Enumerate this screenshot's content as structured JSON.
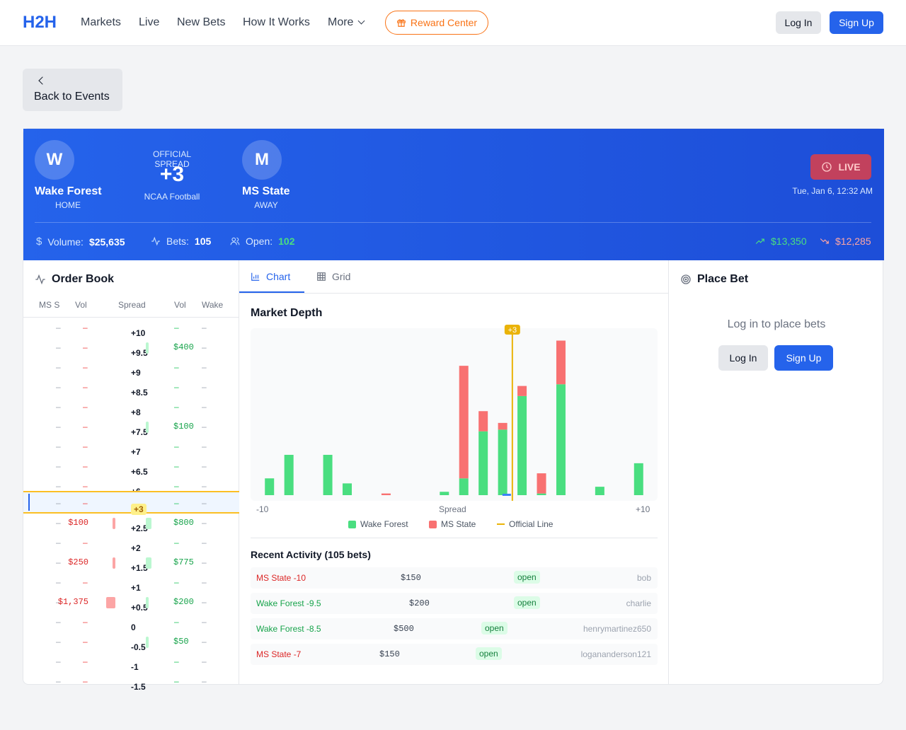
{
  "nav": {
    "logo": "H2H",
    "links": [
      "Markets",
      "Live",
      "New Bets",
      "How It Works",
      "More"
    ],
    "reward": "Reward Center",
    "login": "Log In",
    "signup": "Sign Up"
  },
  "back": "Back to Events",
  "event": {
    "home": {
      "initial": "W",
      "name": "Wake Forest",
      "role": "HOME"
    },
    "away": {
      "initial": "M",
      "name": "MS State",
      "role": "AWAY"
    },
    "spread_label": "OFFICIAL SPREAD",
    "spread": "+3",
    "league": "NCAA Football",
    "status": "LIVE",
    "date": "Tue, Jan 6, 12:32 AM",
    "volume_label": "Volume:",
    "volume": "$25,635",
    "bets_label": "Bets:",
    "bets": "105",
    "open_label": "Open:",
    "open": "102",
    "up": "$13,350",
    "down": "$12,285"
  },
  "orderbook": {
    "title": "Order Book",
    "headers": [
      "MS S",
      "Vol",
      "Spread",
      "Vol",
      "Wake"
    ],
    "rows": [
      {
        "spread": "+10",
        "ms": "",
        "wk": ""
      },
      {
        "spread": "+9.5",
        "ms": "",
        "wk": "$400"
      },
      {
        "spread": "+9",
        "ms": "",
        "wk": ""
      },
      {
        "spread": "+8.5",
        "ms": "",
        "wk": ""
      },
      {
        "spread": "+8",
        "ms": "",
        "wk": ""
      },
      {
        "spread": "+7.5",
        "ms": "",
        "wk": "$100"
      },
      {
        "spread": "+7",
        "ms": "",
        "wk": ""
      },
      {
        "spread": "+6.5",
        "ms": "",
        "wk": ""
      },
      {
        "spread": "+6",
        "ms": "",
        "wk": ""
      },
      {
        "spread": "+3",
        "ms": "",
        "wk": "",
        "current": true
      },
      {
        "spread": "+2.5",
        "ms": "$100",
        "wk": "$800"
      },
      {
        "spread": "+2",
        "ms": "",
        "wk": ""
      },
      {
        "spread": "+1.5",
        "ms": "$250",
        "wk": "$775"
      },
      {
        "spread": "+1",
        "ms": "",
        "wk": ""
      },
      {
        "spread": "+0.5",
        "ms": "$1,375",
        "wk": "$200"
      },
      {
        "spread": "0",
        "ms": "",
        "wk": ""
      },
      {
        "spread": "-0.5",
        "ms": "",
        "wk": "$50"
      },
      {
        "spread": "-1",
        "ms": "",
        "wk": ""
      },
      {
        "spread": "-1.5",
        "ms": "",
        "wk": ""
      }
    ]
  },
  "tabs": [
    "Chart",
    "Grid"
  ],
  "chart_title": "Market Depth",
  "chart_data": {
    "type": "bar",
    "stacked": true,
    "x": [
      -9.5,
      -8.5,
      -7.5,
      -6.5,
      -5.5,
      -4.5,
      -3.5,
      -2.5,
      -1.5,
      -0.5,
      0.5,
      1.5,
      2.5,
      3,
      3.5,
      4.5,
      5.5,
      6.5,
      7.5,
      8.5,
      9.5
    ],
    "series": [
      {
        "name": "Wake Forest",
        "color": "#4ade80",
        "values": [
          250,
          600,
          0,
          600,
          175,
          0,
          0,
          0,
          0,
          50,
          250,
          950,
          975,
          0,
          1475,
          25,
          1650,
          0,
          125,
          0,
          475
        ]
      },
      {
        "name": "MS State",
        "color": "#f87171",
        "values": [
          0,
          0,
          0,
          0,
          0,
          0,
          25,
          0,
          0,
          0,
          1675,
          300,
          100,
          0,
          150,
          300,
          650,
          0,
          0,
          0,
          0
        ]
      }
    ],
    "official_line": 3,
    "official_label": "+3",
    "xlabel": "Spread",
    "xmin_label": "-10",
    "xmax_label": "+10",
    "xlim": [
      -10,
      10
    ],
    "ymax": 2400,
    "legend": [
      "Wake Forest",
      "MS State",
      "Official Line"
    ]
  },
  "activity": {
    "title": "Recent Activity (105 bets)",
    "rows": [
      {
        "side": "MS State -10",
        "team": "ms",
        "amount": "$150",
        "status": "open",
        "user": "bob"
      },
      {
        "side": "Wake Forest -9.5",
        "team": "wk",
        "amount": "$200",
        "status": "open",
        "user": "charlie"
      },
      {
        "side": "Wake Forest -8.5",
        "team": "wk",
        "amount": "$500",
        "status": "open",
        "user": "henrymartinez650"
      },
      {
        "side": "MS State -7",
        "team": "ms",
        "amount": "$150",
        "status": "open",
        "user": "logananderson121"
      }
    ]
  },
  "placebet": {
    "title": "Place Bet",
    "prompt": "Log in to place bets",
    "login": "Log In",
    "signup": "Sign Up"
  }
}
